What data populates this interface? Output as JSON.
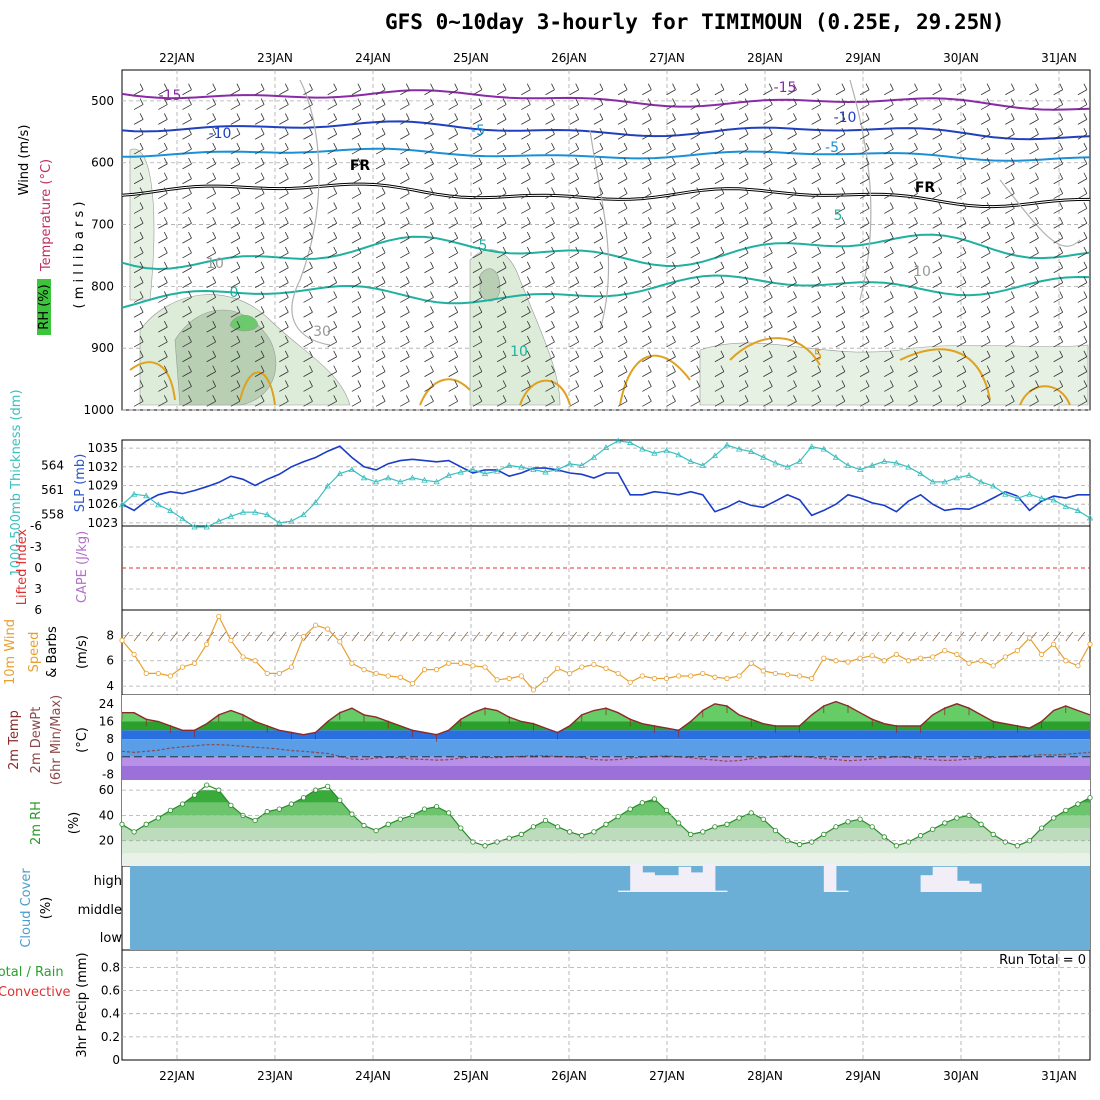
{
  "title": "GFS 0~10day 3-hourly for TIMIMOUN (0.25E, 29.25N)",
  "colors": {
    "temp_line": "#2a56c8",
    "cyan": "#3bbfbf",
    "orange": "#e8a030",
    "green": "#3cb43c",
    "purple": "#8a3ab8",
    "red": "#e03030",
    "cloud": "#6baed6",
    "grey": "#999999"
  },
  "chart_data": [
    {
      "panel": "upper-air",
      "type": "heatmap",
      "xlabels": [
        "22JAN",
        "23JAN",
        "24JAN",
        "25JAN",
        "26JAN",
        "27JAN",
        "28JAN",
        "29JAN",
        "30JAN",
        "31JAN"
      ],
      "ylabels": [
        "500",
        "600",
        "700",
        "800",
        "900",
        "1000"
      ],
      "ylabel_parts": [
        "RH (%)",
        "Temperature (°C)",
        "Wind (m/s)",
        "( m i l l i b a r s )"
      ],
      "contour_labels": [
        "-15",
        "-15",
        "-10",
        "-10",
        "-5",
        "-5",
        "FR",
        "FR",
        "5",
        "5",
        "0",
        "10",
        "10",
        "10",
        "5",
        "30"
      ]
    },
    {
      "panel": "slp-thickness",
      "type": "line",
      "ylabel_left": "1000-500mb Thickness (dm)",
      "ylabel_right": "SLP (mb)",
      "left_ticks": [
        "564",
        "561",
        "558"
      ],
      "right_ticks": [
        "1035",
        "1032",
        "1029",
        "1026",
        "1023"
      ],
      "x": [
        0,
        1,
        2,
        3,
        4,
        5,
        6,
        7,
        8,
        9,
        10,
        11,
        12,
        13,
        14,
        15,
        16,
        17,
        18,
        19,
        20,
        21,
        22,
        23,
        24,
        25,
        26,
        27,
        28,
        29,
        30,
        31,
        32,
        33,
        34,
        35,
        36,
        37,
        38,
        39,
        40,
        41,
        42,
        43,
        44,
        45,
        46,
        47,
        48,
        49,
        50,
        51,
        52,
        53,
        54,
        55,
        56,
        57,
        58,
        59,
        60,
        61,
        62,
        63,
        64,
        65,
        66,
        67,
        68,
        69,
        70,
        71,
        72,
        73,
        74,
        75,
        76,
        77,
        78,
        79,
        80
      ],
      "series": [
        {
          "name": "SLP",
          "values": [
            1026,
            1025,
            1026.5,
            1027.5,
            1028,
            1027.7,
            1028.2,
            1028.8,
            1029.5,
            1030.5,
            1030,
            1029,
            1030,
            1030.8,
            1032,
            1032.8,
            1033.5,
            1034.5,
            1035.3,
            1033.5,
            1032,
            1031.5,
            1032.5,
            1033,
            1033.2,
            1033,
            1032.8,
            1033,
            1032,
            1031,
            1031.5,
            1031.5,
            1030.5,
            1031,
            1031.8,
            1031.8,
            1031.5,
            1031,
            1030.8,
            1030.2,
            1031,
            1031,
            1027.5,
            1027.5,
            1028,
            1027.8,
            1027.5,
            1028,
            1027.5,
            1024.8,
            1025.5,
            1026.5,
            1025.8,
            1025.5,
            1026.5,
            1027.5,
            1026.7,
            1024.2,
            1025,
            1026,
            1027.5,
            1027,
            1026.2,
            1025.8,
            1024.8,
            1026.5,
            1027.5,
            1026,
            1025,
            1025.3,
            1025.2,
            1026,
            1027,
            1028,
            1027.3,
            1025,
            1026.5,
            1027.3,
            1027,
            1027.5,
            1027.5
          ]
        },
        {
          "name": "Thickness",
          "values": [
            559.2,
            560.5,
            560.3,
            559.2,
            558.5,
            557.5,
            556.5,
            556.5,
            557.2,
            557.8,
            558.3,
            558.3,
            558,
            557,
            557.2,
            558,
            559.5,
            561.5,
            563,
            563.5,
            562.5,
            562,
            562.5,
            562,
            562.5,
            562.2,
            562,
            562.8,
            563.2,
            563.5,
            563,
            563.3,
            564,
            563.8,
            563.5,
            563.2,
            563.5,
            564.2,
            564,
            565,
            566.2,
            567,
            566.8,
            566,
            565.5,
            565.8,
            565.3,
            564.5,
            564,
            565.2,
            566.5,
            566,
            565.7,
            565,
            564.3,
            563.8,
            564.5,
            566.3,
            566,
            565,
            564,
            563.5,
            564,
            564.5,
            564.3,
            563.8,
            563,
            562,
            562,
            562.5,
            562.8,
            562,
            561.5,
            560.5,
            560,
            560.5,
            560,
            559.8,
            559,
            558.5,
            557.6
          ]
        }
      ]
    },
    {
      "panel": "cape-li",
      "type": "line",
      "ylabel_left": "Lifted Index",
      "ylabel_right": "CAPE (J/kg)",
      "ticks": [
        "-6",
        "-3",
        "0",
        "3",
        "6"
      ],
      "series": [
        {
          "name": "Lifted Index",
          "values": []
        }
      ]
    },
    {
      "panel": "wind10m",
      "type": "line",
      "ylabel_parts": [
        "10m Wind",
        "Speed",
        "& Barbs"
      ],
      "yunit": "(m/s)",
      "ticks": [
        "8",
        "6",
        "4"
      ],
      "series": [
        {
          "name": "Wind Speed",
          "values": [
            7.6,
            6.5,
            5,
            5,
            4.8,
            5.5,
            5.8,
            7.3,
            9.5,
            7.6,
            6.3,
            6,
            5,
            5,
            5.5,
            7.9,
            8.8,
            8.5,
            7.5,
            5.8,
            5.3,
            5,
            4.8,
            4.7,
            4.2,
            5.3,
            5.3,
            5.8,
            5.8,
            5.6,
            5.5,
            4.5,
            4.6,
            4.8,
            3.7,
            4.5,
            5.4,
            5,
            5.5,
            5.7,
            5.4,
            5,
            4.3,
            4.8,
            4.6,
            4.6,
            4.8,
            4.8,
            5,
            4.7,
            4.6,
            4.8,
            5.8,
            5.2,
            5,
            4.9,
            4.8,
            4.6,
            6.2,
            6,
            5.9,
            6.2,
            6.4,
            6,
            6.5,
            6,
            6.2,
            6.3,
            6.8,
            6.5,
            5.8,
            6,
            5.6,
            6.3,
            6.8,
            7.8,
            6.5,
            7.3,
            6,
            5.6,
            7.3
          ]
        }
      ]
    },
    {
      "panel": "temperature",
      "type": "area",
      "ylabel_parts": [
        "2m Temp",
        "2m DewPt",
        "(6hr Min/Max)"
      ],
      "yunit": "(°C)",
      "ticks": [
        "24",
        "16",
        "8",
        "0",
        "-8"
      ],
      "series": [
        {
          "name": "2m Temp",
          "values": [
            20,
            20,
            17,
            16,
            14,
            12,
            12,
            15,
            19,
            21,
            19,
            16,
            14,
            12,
            11,
            10,
            11,
            16,
            20,
            22,
            19,
            18,
            16,
            14,
            12,
            11,
            10,
            12,
            17,
            20,
            22,
            21,
            18,
            16,
            15,
            13,
            11,
            14,
            19,
            21,
            22,
            20,
            17,
            15,
            14,
            13,
            12,
            16,
            21,
            24,
            23,
            19,
            17,
            15,
            14,
            14,
            14,
            19,
            23,
            25,
            23,
            20,
            17,
            15,
            14,
            14,
            14,
            19,
            22,
            24,
            22,
            19,
            16,
            15,
            14,
            13,
            16,
            21,
            23,
            21,
            19
          ]
        },
        {
          "name": "2m DewPt",
          "values": [
            2.5,
            2,
            2.5,
            3,
            4,
            4.5,
            5,
            5.5,
            5.5,
            5.2,
            4.8,
            4.3,
            4,
            3.5,
            2.8,
            2.5,
            2,
            1.5,
            0.2,
            -1,
            -1.2,
            -0.5,
            -0.2,
            -0.5,
            -1,
            -1.2,
            -1.5,
            -1.3,
            -0.6,
            -0.1,
            -0.3,
            -0.4,
            0,
            0.2,
            0.5,
            0.4,
            0.2,
            0,
            -0.3,
            -1.2,
            -1.5,
            -1.2,
            -0.6,
            -0.2,
            0.2,
            0.4,
            0,
            -0.4,
            -1,
            -1.5,
            -2,
            -1.7,
            -0.8,
            -0.4,
            0,
            0.4,
            0.2,
            -0.2,
            -0.8,
            -1.2,
            -1.8,
            -1.5,
            -1,
            -0.5,
            0,
            -0.3,
            -0.8,
            -1.3,
            -1.6,
            -1.5,
            -1,
            -0.6,
            -0.3,
            0,
            0.3,
            0.6,
            1,
            0.8,
            1.2,
            1.6,
            2
          ]
        }
      ]
    },
    {
      "panel": "rh",
      "type": "area",
      "ylabel": "2m RH",
      "yunit": "(%)",
      "ticks": [
        "60",
        "40",
        "20"
      ],
      "series": [
        {
          "name": "2m RH",
          "values": [
            33,
            27,
            33,
            38,
            44,
            49,
            56,
            64,
            60,
            48,
            40,
            36,
            43,
            45,
            49,
            54,
            60,
            63,
            52,
            41,
            32,
            28,
            33,
            37,
            40,
            45,
            47,
            42,
            30,
            19,
            16,
            19,
            22,
            25,
            31,
            36,
            31,
            27,
            24,
            27,
            33,
            39,
            45,
            50,
            53,
            44,
            34,
            25,
            27,
            31,
            33,
            38,
            42,
            37,
            28,
            20,
            17,
            19,
            25,
            31,
            35,
            37,
            31,
            23,
            16,
            19,
            24,
            29,
            34,
            38,
            40,
            33,
            25,
            19,
            16,
            20,
            30,
            38,
            44,
            49,
            54
          ]
        }
      ]
    },
    {
      "panel": "cloud",
      "type": "bar",
      "ylabel": "Cloud Cover",
      "yunit": "(%)",
      "levels": [
        "high",
        "middle",
        "low"
      ],
      "series": [
        {
          "name": "High cloud",
          "values": [
            0,
            0,
            0,
            0,
            0,
            0,
            0,
            0,
            0,
            0,
            0,
            0,
            0,
            0,
            0,
            0,
            0,
            0,
            0,
            0,
            0,
            0,
            0,
            0,
            0,
            0,
            0,
            0,
            0,
            0,
            0,
            0,
            0,
            0,
            0,
            0,
            0,
            0,
            0,
            0,
            0,
            5,
            100,
            70,
            60,
            60,
            90,
            70,
            100,
            5,
            0,
            0,
            0,
            0,
            0,
            0,
            0,
            0,
            100,
            5,
            0,
            0,
            0,
            0,
            0,
            0,
            60,
            90,
            90,
            40,
            30,
            0,
            0,
            0,
            0,
            0,
            0,
            0,
            0,
            0,
            0
          ]
        }
      ]
    },
    {
      "panel": "precip",
      "type": "bar",
      "ylabel": "3hr Precip (mm)",
      "side_label_1": "Total / Rain",
      "side_label_2": "Convective",
      "run_total": "Run Total = 0",
      "ticks": [
        "0.8",
        "0.6",
        "0.4",
        "0.2",
        "0"
      ],
      "ylim": [
        0,
        0.95
      ],
      "series": [
        {
          "name": "3hr Precip",
          "values": []
        }
      ],
      "xlabels": [
        "22JAN",
        "23JAN",
        "24JAN",
        "25JAN",
        "26JAN",
        "27JAN",
        "28JAN",
        "29JAN",
        "30JAN",
        "31JAN"
      ]
    }
  ]
}
